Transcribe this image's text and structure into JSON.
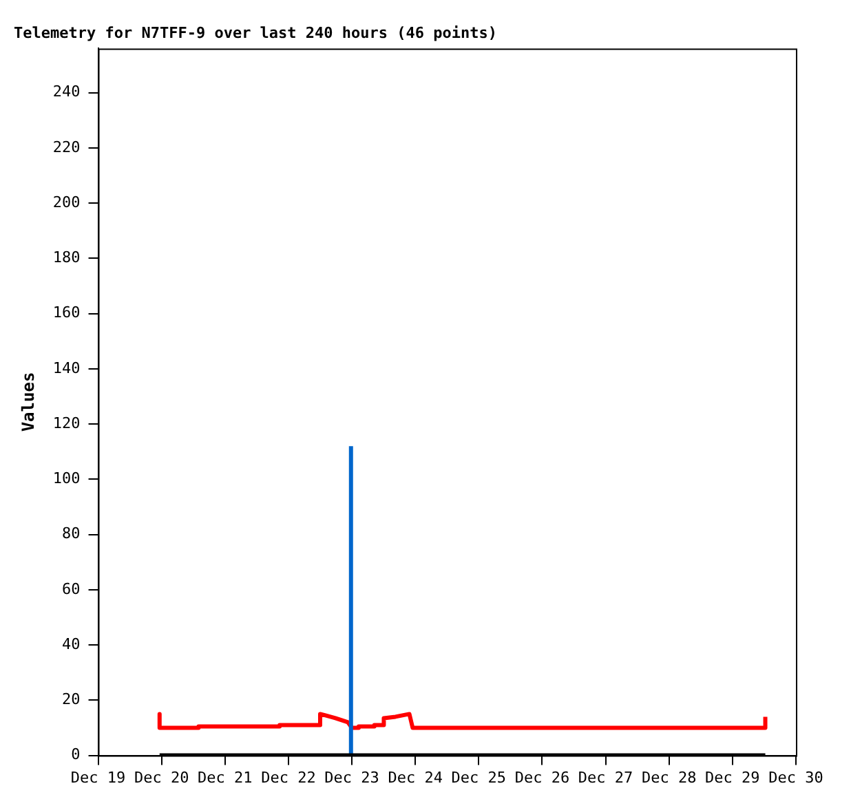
{
  "chart_data": {
    "type": "line",
    "title": "Telemetry for N7TFF-9 over last 240 hours (46 points)",
    "ylabel": "Values",
    "xlim": [
      "--12-19",
      "--12-30"
    ],
    "xticks": [
      {
        "value": "--12-19",
        "label": "Dec 19"
      },
      {
        "value": "--12-20",
        "label": "Dec 20"
      },
      {
        "value": "--12-21",
        "label": "Dec 21"
      },
      {
        "value": "--12-22",
        "label": "Dec 22"
      },
      {
        "value": "--12-23",
        "label": "Dec 23"
      },
      {
        "value": "--12-24",
        "label": "Dec 24"
      },
      {
        "value": "--12-25",
        "label": "Dec 25"
      },
      {
        "value": "--12-26",
        "label": "Dec 26"
      },
      {
        "value": "--12-27",
        "label": "Dec 27"
      },
      {
        "value": "--12-28",
        "label": "Dec 28"
      },
      {
        "value": "--12-29",
        "label": "Dec 29"
      },
      {
        "value": "--12-30",
        "label": "Dec 30"
      }
    ],
    "ylim": [
      0,
      256
    ],
    "yticks": [
      0,
      20,
      40,
      60,
      80,
      100,
      120,
      140,
      160,
      180,
      200,
      220,
      240
    ],
    "grid": false,
    "legend": false,
    "marker": "none",
    "line_style": "solid",
    "series": [
      {
        "color": "#000000",
        "x": [
          "--12-19T23:15",
          "--12-29T12:25"
        ],
        "values": [
          0,
          0
        ]
      },
      {
        "color": "#0066cc",
        "x": [
          "--12-22T23:40",
          "--12-22T23:40"
        ],
        "values": [
          0,
          112
        ]
      },
      {
        "color": "#ff0000",
        "x": [
          "--12-19T23:15",
          "--12-19T23:15",
          "--12-20T14:00",
          "--12-20T14:00",
          "--12-21T20:40",
          "--12-21T20:40",
          "--12-22T12:00",
          "--12-22T12:00",
          "--12-22T14:00",
          "--12-22T17:45",
          "--12-22T22:30",
          "--12-23T00:00",
          "--12-23T02:35",
          "--12-23T02:35",
          "--12-23T08:30",
          "--12-23T08:30",
          "--12-23T12:05",
          "--12-23T12:05",
          "--12-23T16:30",
          "--12-23T21:45",
          "--12-23T23:00",
          "--12-29T12:25",
          "--12-29T12:25"
        ],
        "values": [
          15,
          10,
          10,
          10.5,
          10.5,
          11,
          11,
          15,
          14.5,
          13.5,
          12,
          10,
          10,
          10.5,
          10.5,
          11,
          11,
          13.5,
          14,
          15,
          10,
          10,
          14
        ]
      }
    ]
  }
}
